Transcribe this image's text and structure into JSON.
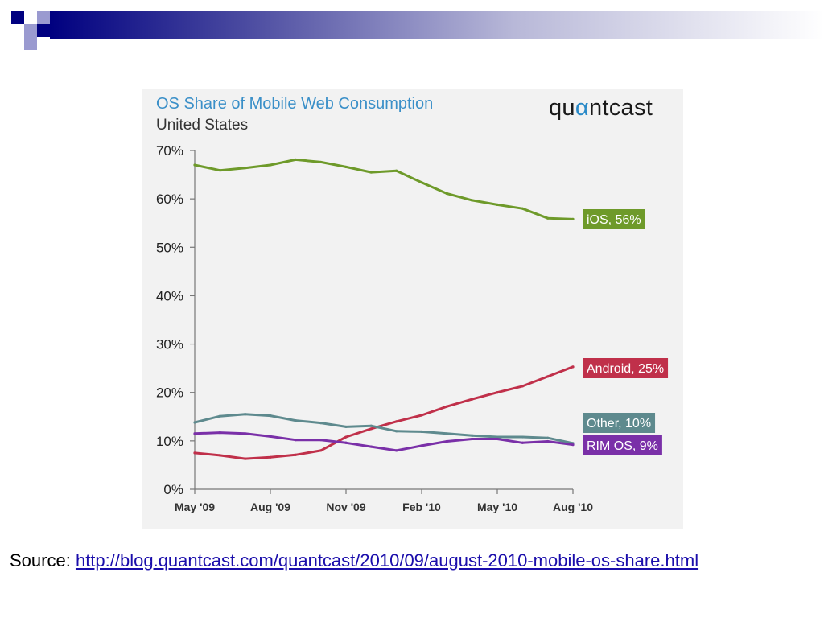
{
  "source": {
    "label": "Source:",
    "link": "http://blog.quantcast.com/quantcast/2010/09/august-2010-mobile-os-share.html"
  },
  "brand": {
    "prefix": "qu",
    "alpha": "α",
    "suffix": "ntcast"
  },
  "colors": {
    "ios": "#6e9a2a",
    "android": "#c0304a",
    "other": "#5e8a8e",
    "rim": "#7a30a8",
    "title": "#3a8fc8",
    "slide_navy": "#000080",
    "slide_lavender": "#9a9ad0"
  },
  "chart_data": {
    "type": "line",
    "title": "OS Share of Mobile Web Consumption",
    "subtitle": "United States",
    "x": [
      "May '09",
      "Jun '09",
      "Jul '09",
      "Aug '09",
      "Sep '09",
      "Oct '09",
      "Nov '09",
      "Dec '09",
      "Jan '10",
      "Feb '10",
      "Mar '10",
      "Apr '10",
      "May '10",
      "Jun '10",
      "Jul '10",
      "Aug '10"
    ],
    "xticks": [
      "May '09",
      "Aug '09",
      "Nov '09",
      "Feb '10",
      "May '10",
      "Aug '10"
    ],
    "yticks": [
      "0%",
      "10%",
      "20%",
      "30%",
      "40%",
      "50%",
      "60%",
      "70%"
    ],
    "ylim": [
      0,
      70
    ],
    "grid": false,
    "series": [
      {
        "key": "ios",
        "label": "iOS, 56%",
        "values": [
          67,
          65.9,
          66.4,
          67,
          68.1,
          67.6,
          66.6,
          65.5,
          65.8,
          63.4,
          61.1,
          59.7,
          58.8,
          58,
          56,
          55.8
        ]
      },
      {
        "key": "android",
        "label": "Android, 25%",
        "values": [
          7.5,
          7,
          6.3,
          6.6,
          7.1,
          8,
          10.8,
          12.5,
          14,
          15.3,
          17.1,
          18.6,
          20,
          21.3,
          23.3,
          25.3
        ]
      },
      {
        "key": "other",
        "label": "Other, 10%",
        "values": [
          13.8,
          15.1,
          15.5,
          15.2,
          14.2,
          13.7,
          12.9,
          13.1,
          12,
          11.9,
          11.5,
          11.1,
          10.8,
          10.8,
          10.6,
          9.5
        ]
      },
      {
        "key": "rim",
        "label": "RIM OS, 9%",
        "values": [
          11.5,
          11.7,
          11.5,
          10.9,
          10.2,
          10.2,
          9.6,
          8.8,
          8,
          9,
          9.9,
          10.4,
          10.4,
          9.6,
          9.9,
          9.2
        ]
      }
    ]
  }
}
